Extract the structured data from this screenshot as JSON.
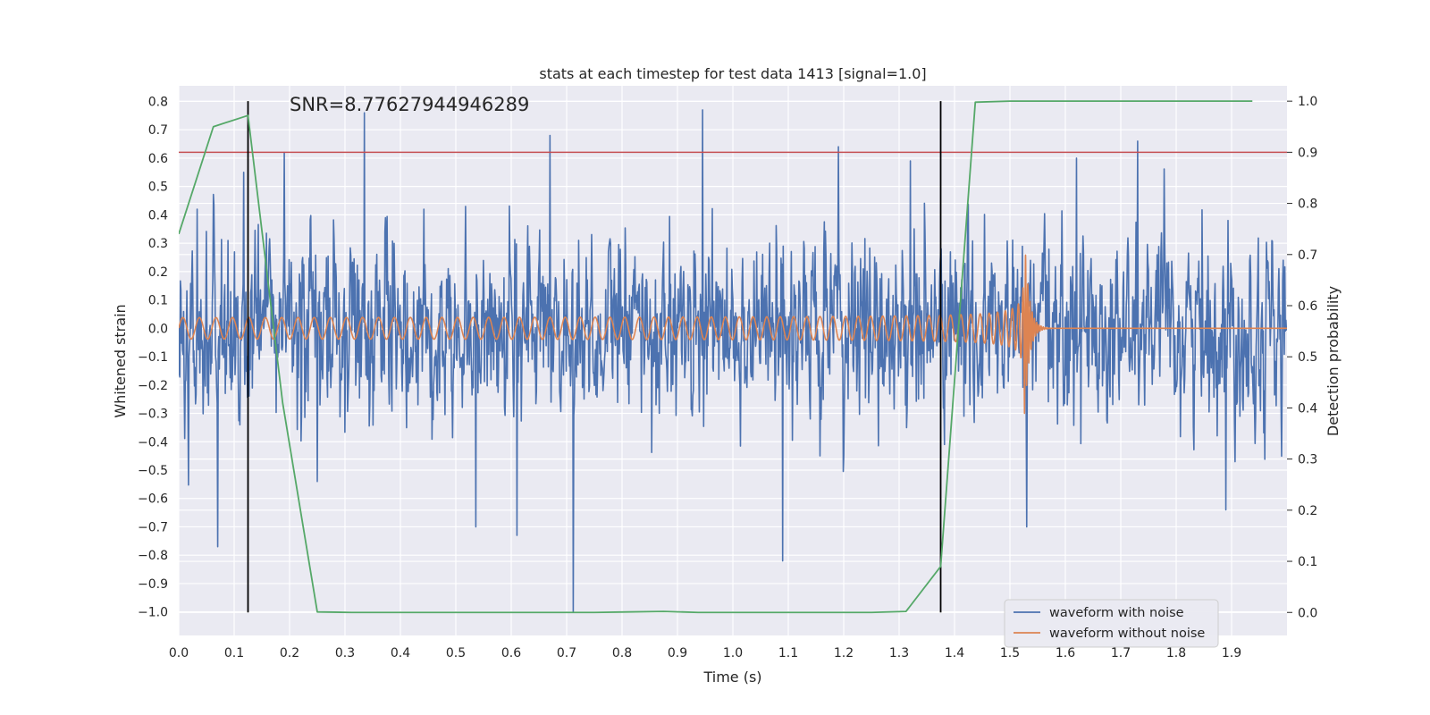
{
  "chart_data": {
    "type": "line",
    "title": "stats at each timestep for test data 1413 [signal=1.0]",
    "xlabel": "Time (s)",
    "ylabel": "Whitened strain",
    "y2label": "Detection probability",
    "annotation": "SNR=8.77627944946289",
    "xlim": [
      0.0,
      2.0
    ],
    "ylim": [
      -1.083,
      0.855
    ],
    "y2lim": [
      -0.045,
      1.03
    ],
    "xticks": [
      "0.0",
      "0.1",
      "0.2",
      "0.3",
      "0.4",
      "0.5",
      "0.6",
      "0.7",
      "0.8",
      "0.9",
      "1.0",
      "1.1",
      "1.2",
      "1.3",
      "1.4",
      "1.5",
      "1.6",
      "1.7",
      "1.8",
      "1.9"
    ],
    "yticks": [
      "0.8",
      "0.7",
      "0.6",
      "0.5",
      "0.4",
      "0.3",
      "0.2",
      "0.1",
      "0.0",
      "-0.1",
      "-0.2",
      "-0.3",
      "-0.4",
      "-0.5",
      "-0.6",
      "-0.7",
      "-0.8",
      "-0.9",
      "-1.0"
    ],
    "y2ticks": [
      "1.0",
      "0.9",
      "0.8",
      "0.7",
      "0.6",
      "0.5",
      "0.4",
      "0.3",
      "0.2",
      "0.1",
      "0.0"
    ],
    "series": [
      {
        "name": "waveform with noise",
        "color": "#4c72b0",
        "sample_rate": 1024,
        "amplitude_sd": 0.2,
        "spikes": [
          {
            "t": 0.033,
            "v": 0.42
          },
          {
            "t": 0.07,
            "v": -0.77
          },
          {
            "t": 0.117,
            "v": 0.55
          },
          {
            "t": 0.19,
            "v": 0.62
          },
          {
            "t": 0.25,
            "v": -0.54
          },
          {
            "t": 0.335,
            "v": 0.76
          },
          {
            "t": 0.536,
            "v": -0.7
          },
          {
            "t": 0.61,
            "v": -0.73
          },
          {
            "t": 0.67,
            "v": 0.68
          },
          {
            "t": 0.712,
            "v": -1.0
          },
          {
            "t": 0.945,
            "v": 0.77
          },
          {
            "t": 1.09,
            "v": -0.82
          },
          {
            "t": 1.19,
            "v": 0.64
          },
          {
            "t": 1.32,
            "v": 0.59
          },
          {
            "t": 1.53,
            "v": -0.7
          },
          {
            "t": 1.62,
            "v": 0.6
          },
          {
            "t": 1.73,
            "v": 0.66
          },
          {
            "t": 1.89,
            "v": -0.64
          }
        ]
      },
      {
        "name": "waveform without noise",
        "color": "#dd8452",
        "chirp": {
          "t_merge": 1.527,
          "f0": 20,
          "f_merge": 250,
          "a0": 0.035,
          "a_merge": 0.3,
          "ringdown_tau": 0.008
        }
      },
      {
        "name": "Detection probability",
        "color": "#55a868",
        "axis": "right",
        "x": [
          0.0,
          0.0625,
          0.125,
          0.1875,
          0.25,
          0.3125,
          0.375,
          0.4375,
          0.5,
          0.5625,
          0.625,
          0.6875,
          0.75,
          0.8125,
          0.875,
          0.9375,
          1.0,
          1.0625,
          1.125,
          1.1875,
          1.25,
          1.3125,
          1.375,
          1.4375,
          1.5,
          1.5625,
          1.625,
          1.6875,
          1.75,
          1.8125,
          1.875,
          1.9375
        ],
        "values": [
          0.74,
          0.95,
          0.972,
          0.41,
          0.001,
          0.0,
          0.0,
          0.0,
          0.0,
          0.0,
          0.0,
          0.0,
          0.0,
          0.001,
          0.002,
          0.0,
          0.0,
          0.0,
          0.0,
          0.0,
          0.0,
          0.002,
          0.09,
          0.998,
          1.0,
          1.0,
          1.0,
          1.0,
          1.0,
          1.0,
          1.0,
          1.0
        ]
      }
    ],
    "hlines": [
      {
        "y": 0.9,
        "axis": "right",
        "color": "#c44e52"
      }
    ],
    "vlines": [
      {
        "x": 0.125,
        "color": "#000000"
      },
      {
        "x": 1.375,
        "color": "#000000"
      }
    ],
    "legend": {
      "position": "lower-right",
      "entries": [
        {
          "label": "waveform with noise",
          "color": "#4c72b0"
        },
        {
          "label": "waveform without noise",
          "color": "#dd8452"
        }
      ]
    },
    "grid": true,
    "colors": {
      "background": "#eaeaf2",
      "grid": "#ffffff"
    }
  }
}
